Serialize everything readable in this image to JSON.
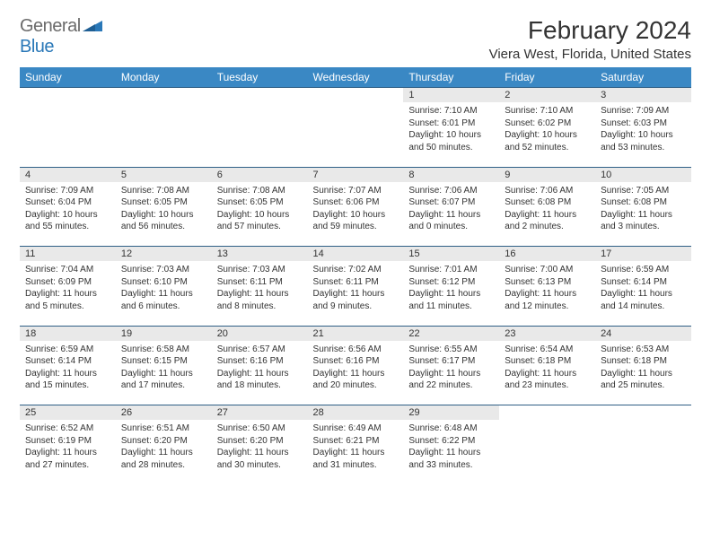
{
  "logo": {
    "general": "General",
    "blue": "Blue"
  },
  "title": "February 2024",
  "location": "Viera West, Florida, United States",
  "colors": {
    "header_bg": "#3a88c4",
    "header_text": "#ffffff",
    "daynum_bg": "#e9e9e9",
    "rule": "#2f5f86",
    "logo_gray": "#6b6b6b",
    "logo_blue": "#2a78b8"
  },
  "day_headers": [
    "Sunday",
    "Monday",
    "Tuesday",
    "Wednesday",
    "Thursday",
    "Friday",
    "Saturday"
  ],
  "weeks": [
    [
      null,
      null,
      null,
      null,
      {
        "n": "1",
        "sunrise": "7:10 AM",
        "sunset": "6:01 PM",
        "dl": "10 hours and 50 minutes."
      },
      {
        "n": "2",
        "sunrise": "7:10 AM",
        "sunset": "6:02 PM",
        "dl": "10 hours and 52 minutes."
      },
      {
        "n": "3",
        "sunrise": "7:09 AM",
        "sunset": "6:03 PM",
        "dl": "10 hours and 53 minutes."
      }
    ],
    [
      {
        "n": "4",
        "sunrise": "7:09 AM",
        "sunset": "6:04 PM",
        "dl": "10 hours and 55 minutes."
      },
      {
        "n": "5",
        "sunrise": "7:08 AM",
        "sunset": "6:05 PM",
        "dl": "10 hours and 56 minutes."
      },
      {
        "n": "6",
        "sunrise": "7:08 AM",
        "sunset": "6:05 PM",
        "dl": "10 hours and 57 minutes."
      },
      {
        "n": "7",
        "sunrise": "7:07 AM",
        "sunset": "6:06 PM",
        "dl": "10 hours and 59 minutes."
      },
      {
        "n": "8",
        "sunrise": "7:06 AM",
        "sunset": "6:07 PM",
        "dl": "11 hours and 0 minutes."
      },
      {
        "n": "9",
        "sunrise": "7:06 AM",
        "sunset": "6:08 PM",
        "dl": "11 hours and 2 minutes."
      },
      {
        "n": "10",
        "sunrise": "7:05 AM",
        "sunset": "6:08 PM",
        "dl": "11 hours and 3 minutes."
      }
    ],
    [
      {
        "n": "11",
        "sunrise": "7:04 AM",
        "sunset": "6:09 PM",
        "dl": "11 hours and 5 minutes."
      },
      {
        "n": "12",
        "sunrise": "7:03 AM",
        "sunset": "6:10 PM",
        "dl": "11 hours and 6 minutes."
      },
      {
        "n": "13",
        "sunrise": "7:03 AM",
        "sunset": "6:11 PM",
        "dl": "11 hours and 8 minutes."
      },
      {
        "n": "14",
        "sunrise": "7:02 AM",
        "sunset": "6:11 PM",
        "dl": "11 hours and 9 minutes."
      },
      {
        "n": "15",
        "sunrise": "7:01 AM",
        "sunset": "6:12 PM",
        "dl": "11 hours and 11 minutes."
      },
      {
        "n": "16",
        "sunrise": "7:00 AM",
        "sunset": "6:13 PM",
        "dl": "11 hours and 12 minutes."
      },
      {
        "n": "17",
        "sunrise": "6:59 AM",
        "sunset": "6:14 PM",
        "dl": "11 hours and 14 minutes."
      }
    ],
    [
      {
        "n": "18",
        "sunrise": "6:59 AM",
        "sunset": "6:14 PM",
        "dl": "11 hours and 15 minutes."
      },
      {
        "n": "19",
        "sunrise": "6:58 AM",
        "sunset": "6:15 PM",
        "dl": "11 hours and 17 minutes."
      },
      {
        "n": "20",
        "sunrise": "6:57 AM",
        "sunset": "6:16 PM",
        "dl": "11 hours and 18 minutes."
      },
      {
        "n": "21",
        "sunrise": "6:56 AM",
        "sunset": "6:16 PM",
        "dl": "11 hours and 20 minutes."
      },
      {
        "n": "22",
        "sunrise": "6:55 AM",
        "sunset": "6:17 PM",
        "dl": "11 hours and 22 minutes."
      },
      {
        "n": "23",
        "sunrise": "6:54 AM",
        "sunset": "6:18 PM",
        "dl": "11 hours and 23 minutes."
      },
      {
        "n": "24",
        "sunrise": "6:53 AM",
        "sunset": "6:18 PM",
        "dl": "11 hours and 25 minutes."
      }
    ],
    [
      {
        "n": "25",
        "sunrise": "6:52 AM",
        "sunset": "6:19 PM",
        "dl": "11 hours and 27 minutes."
      },
      {
        "n": "26",
        "sunrise": "6:51 AM",
        "sunset": "6:20 PM",
        "dl": "11 hours and 28 minutes."
      },
      {
        "n": "27",
        "sunrise": "6:50 AM",
        "sunset": "6:20 PM",
        "dl": "11 hours and 30 minutes."
      },
      {
        "n": "28",
        "sunrise": "6:49 AM",
        "sunset": "6:21 PM",
        "dl": "11 hours and 31 minutes."
      },
      {
        "n": "29",
        "sunrise": "6:48 AM",
        "sunset": "6:22 PM",
        "dl": "11 hours and 33 minutes."
      },
      null,
      null
    ]
  ],
  "labels": {
    "sunrise": "Sunrise: ",
    "sunset": "Sunset: ",
    "daylight": "Daylight: "
  }
}
